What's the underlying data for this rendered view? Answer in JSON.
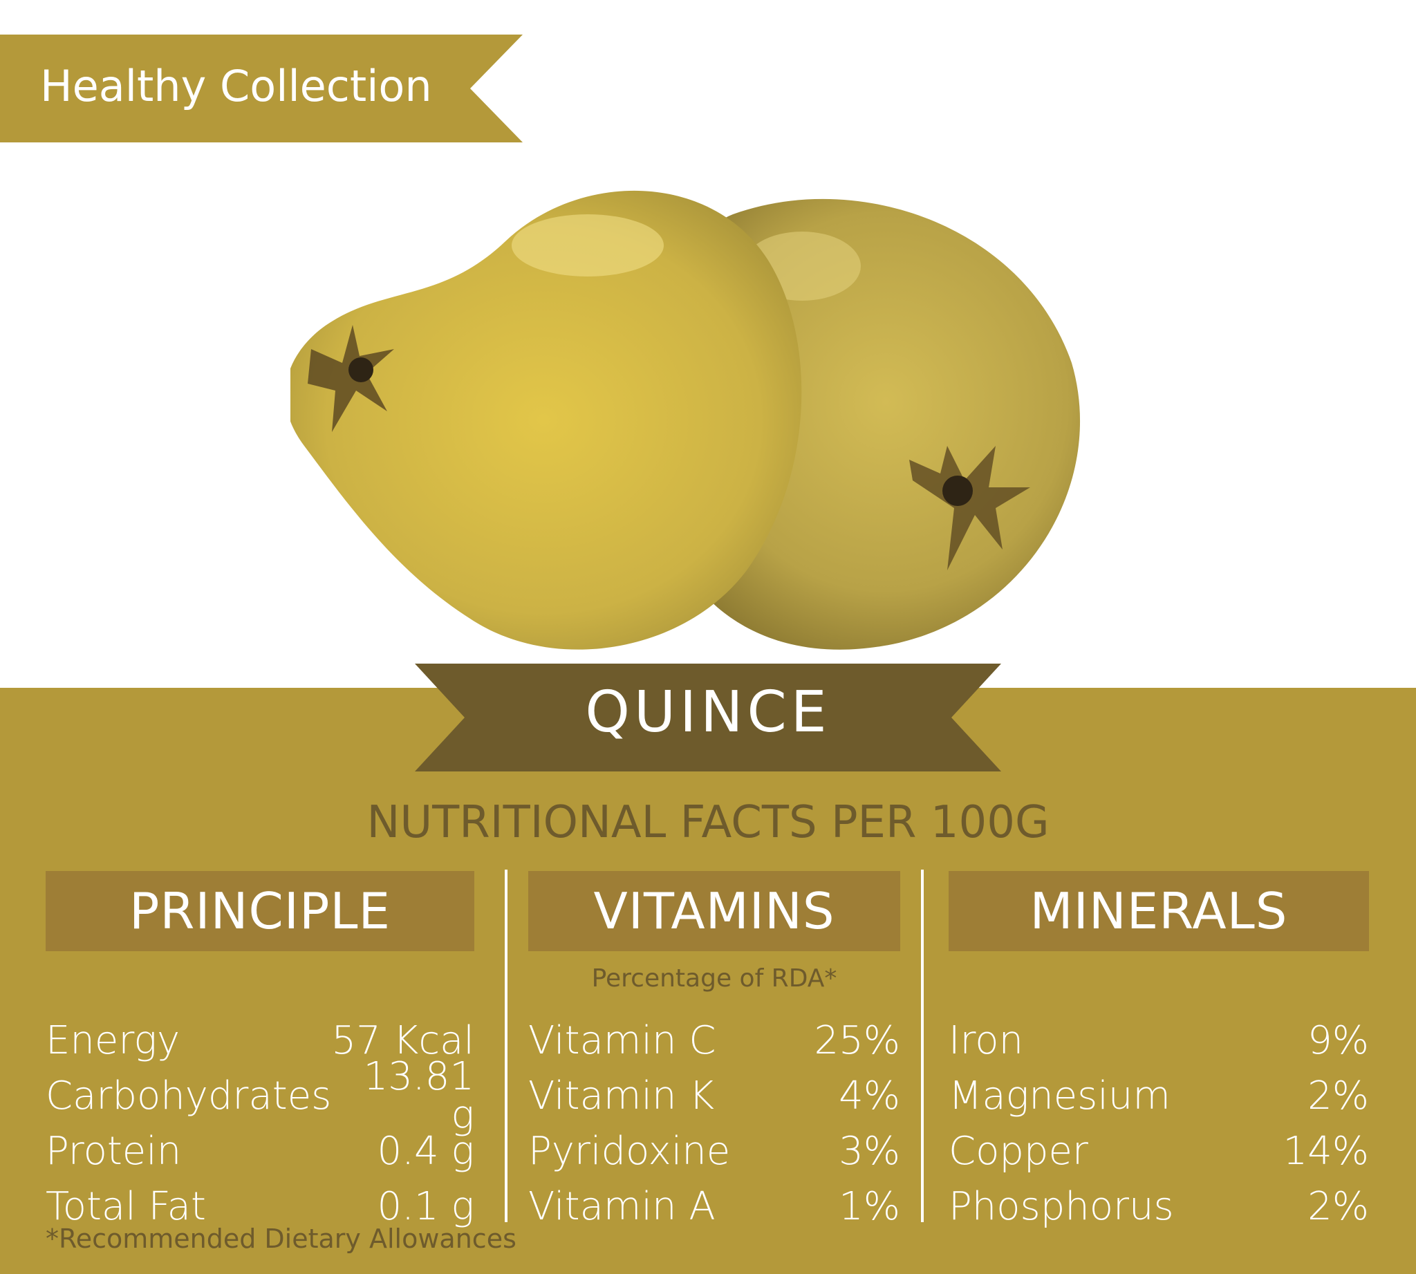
{
  "brand": {
    "ribbon_label": "Healthy Collection",
    "accent": "#b4993a",
    "dark_accent": "#6e5b2c"
  },
  "product": {
    "name": "QUINCE",
    "subtitle": "NUTRITIONAL FACTS PER 100G"
  },
  "principle": {
    "heading": "PRINCIPLE",
    "rows": [
      {
        "label": "Energy",
        "value": "57 Kcal"
      },
      {
        "label": "Carbohydrates",
        "value": "13.81 g"
      },
      {
        "label": "Protein",
        "value": "0.4 g"
      },
      {
        "label": "Total Fat",
        "value": "0.1 g"
      }
    ]
  },
  "vitamins": {
    "heading": "VITAMINS",
    "note": "Percentage of RDA*",
    "rows": [
      {
        "label": "Vitamin C",
        "value": "25%"
      },
      {
        "label": "Vitamin K",
        "value": "4%"
      },
      {
        "label": "Pyridoxine",
        "value": "3%"
      },
      {
        "label": "Vitamin A",
        "value": "1%"
      }
    ]
  },
  "minerals": {
    "heading": "MINERALS",
    "rows": [
      {
        "label": "Iron",
        "value": "9%"
      },
      {
        "label": "Magnesium",
        "value": "2%"
      },
      {
        "label": "Copper",
        "value": "14%"
      },
      {
        "label": "Phosphorus",
        "value": "2%"
      }
    ]
  },
  "footnote": "*Recommended Dietary Allowances",
  "illustration": {
    "icon": "quince-fruit-icon"
  }
}
